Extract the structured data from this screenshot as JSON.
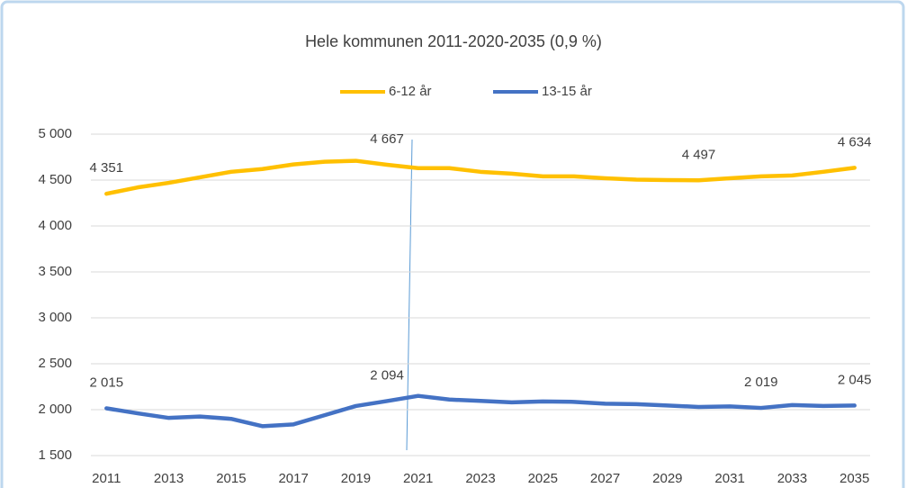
{
  "chart_data": {
    "type": "line",
    "title": "Hele kommunen 2011-2020-2035 (0,9 %)",
    "categories": [
      "2011",
      null,
      "2013",
      null,
      "2015",
      null,
      "2017",
      null,
      "2019",
      null,
      "2021",
      null,
      "2023",
      null,
      "2025",
      null,
      "2027",
      null,
      "2029",
      null,
      "2031",
      null,
      "2033",
      null,
      "2035"
    ],
    "series": [
      {
        "name": "6-12 år",
        "color": "#FFC000",
        "values": [
          4351,
          4420,
          4470,
          4530,
          4590,
          4620,
          4670,
          4700,
          4710,
          4667,
          4630,
          4630,
          4590,
          4570,
          4540,
          4540,
          4520,
          4505,
          4500,
          4497,
          4520,
          4540,
          4550,
          4590,
          4634
        ],
        "value_labels": [
          "4 351",
          null,
          null,
          null,
          null,
          null,
          null,
          null,
          null,
          "4 667",
          null,
          null,
          null,
          null,
          null,
          null,
          null,
          null,
          null,
          "4 497",
          null,
          null,
          null,
          null,
          "4 634"
        ]
      },
      {
        "name": "13-15 år",
        "color": "#4472C4",
        "values": [
          2015,
          1960,
          1910,
          1925,
          1900,
          1820,
          1840,
          1940,
          2040,
          2094,
          2150,
          2110,
          2095,
          2080,
          2090,
          2085,
          2065,
          2060,
          2045,
          2030,
          2035,
          2019,
          2050,
          2040,
          2045
        ],
        "value_labels": [
          "2 015",
          null,
          null,
          null,
          null,
          null,
          null,
          null,
          null,
          "2 094",
          null,
          null,
          null,
          null,
          null,
          null,
          null,
          null,
          null,
          null,
          null,
          "2 019",
          null,
          null,
          "2 045"
        ]
      }
    ],
    "ylim": [
      1500,
      5000
    ],
    "yticks": [
      {
        "value": 1500,
        "label": "1 500"
      },
      {
        "value": 2000,
        "label": "2 000"
      },
      {
        "value": 2500,
        "label": "2 500"
      },
      {
        "value": 3000,
        "label": "3 000"
      },
      {
        "value": 3500,
        "label": "3 500"
      },
      {
        "value": 4000,
        "label": "4 000"
      },
      {
        "value": 4500,
        "label": "4 500"
      },
      {
        "value": 5000,
        "label": "5 000"
      }
    ],
    "grid": true,
    "legend": "top"
  }
}
